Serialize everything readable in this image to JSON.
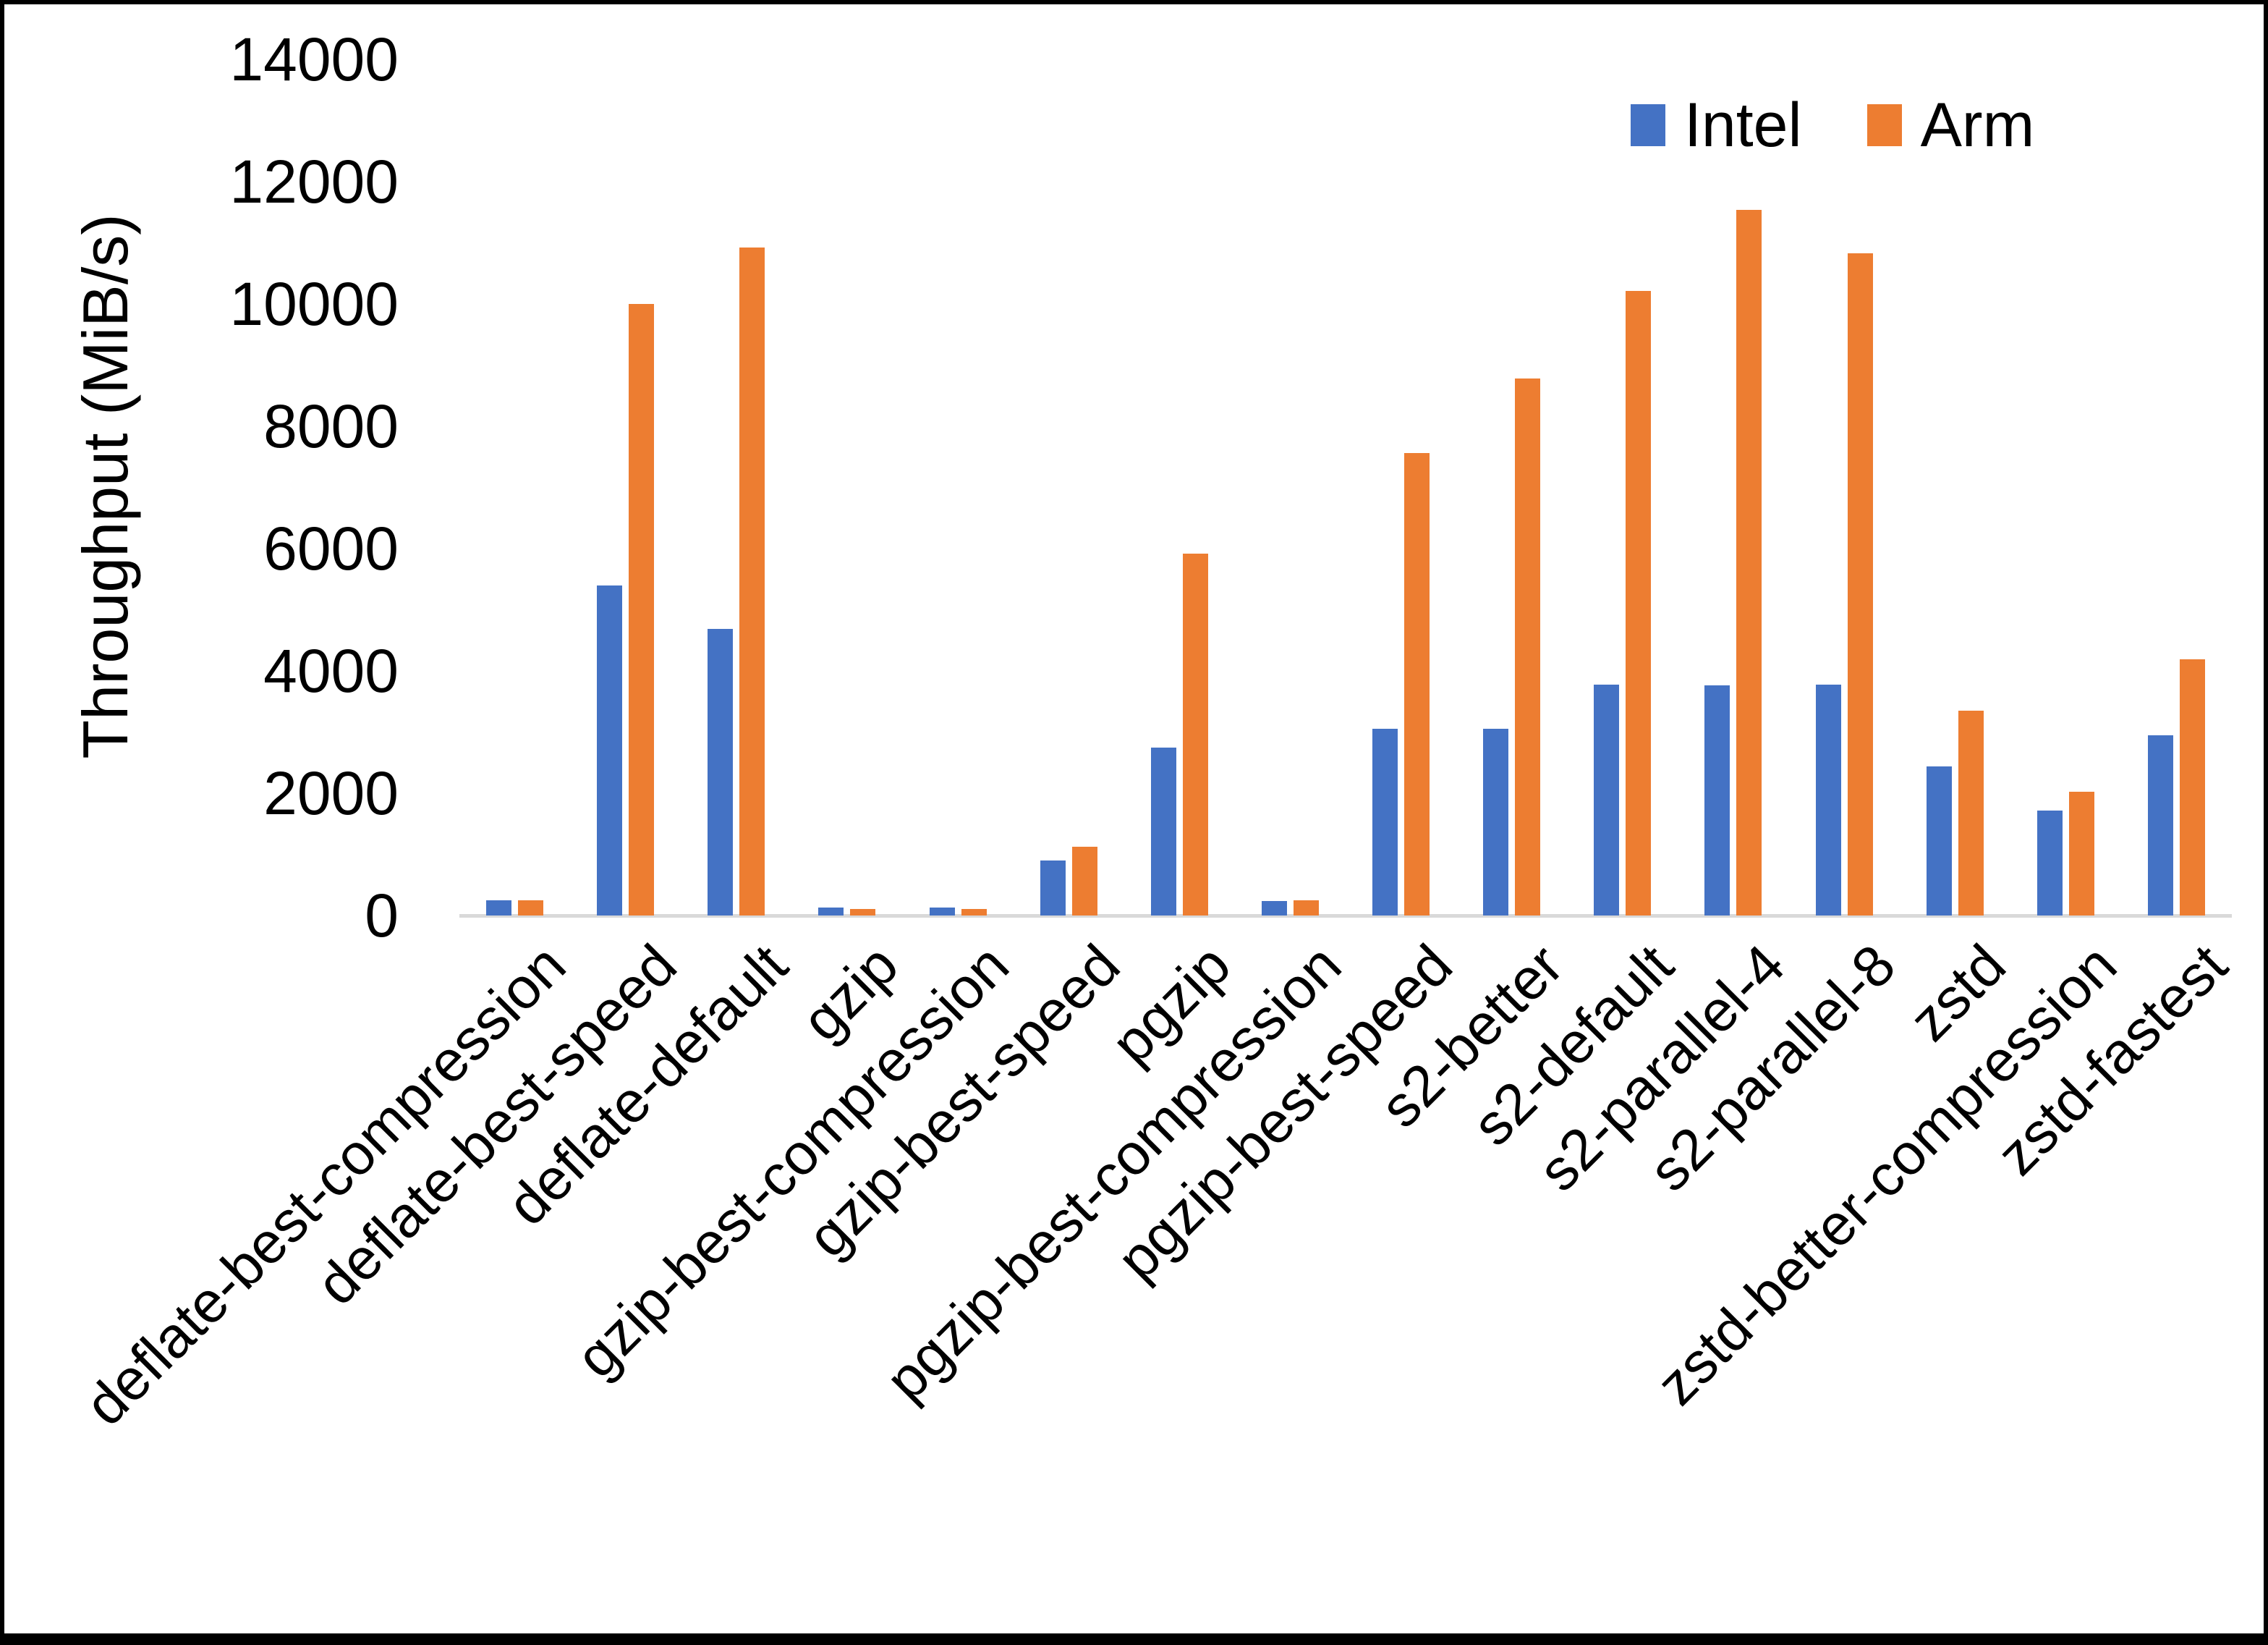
{
  "chart_data": {
    "type": "bar",
    "title": "",
    "xlabel": "",
    "ylabel": "Throughput (MiB/s)",
    "ylim": [
      0,
      14000
    ],
    "ytick_step": 2000,
    "yticks": [
      0,
      2000,
      4000,
      6000,
      8000,
      10000,
      12000,
      14000
    ],
    "grid": false,
    "legend_position": "top-right",
    "categories": [
      "deflate-best-compression",
      "deflate-best-speed",
      "deflate-default",
      "gzip",
      "gzip-best-compression",
      "gzip-best-speed",
      "pgzip",
      "pgzip-best-compression",
      "pgzip-best-speed",
      "s2-better",
      "s2-default",
      "s2-parallel-4",
      "s2-parallel-8",
      "zstd",
      "zstd-better-compression",
      "zstd-fastest"
    ],
    "series": [
      {
        "name": "Intel",
        "color": "#4472C4",
        "values": [
          250,
          5400,
          4690,
          130,
          130,
          900,
          2750,
          240,
          3050,
          3050,
          3780,
          3760,
          3770,
          2440,
          1720,
          2950
        ]
      },
      {
        "name": "Arm",
        "color": "#ED7D31",
        "values": [
          250,
          10000,
          10920,
          105,
          110,
          1125,
          5915,
          250,
          7560,
          8780,
          10210,
          11540,
          10830,
          3350,
          2025,
          4190
        ]
      }
    ]
  },
  "colors": {
    "axis_line": "#d9d9d9",
    "text": "#000000",
    "frame": "#000000",
    "background": "#ffffff"
  }
}
